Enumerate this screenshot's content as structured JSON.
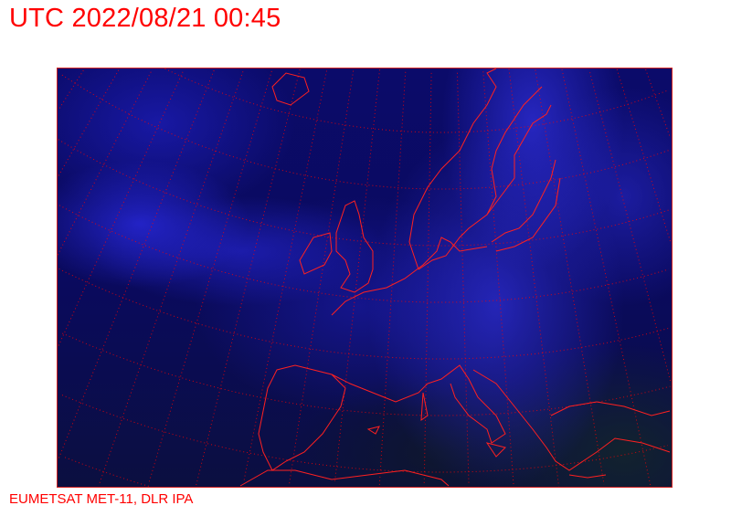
{
  "header": {
    "title": "UTC 2022/08/21 00:45"
  },
  "footer": {
    "credit": "EUMETSAT MET-11, DLR IPA"
  },
  "map": {
    "imagery": "satellite infrared composite, Europe",
    "overlay_color": "#ff0000",
    "graticule": "dotted",
    "coastlines": true
  }
}
